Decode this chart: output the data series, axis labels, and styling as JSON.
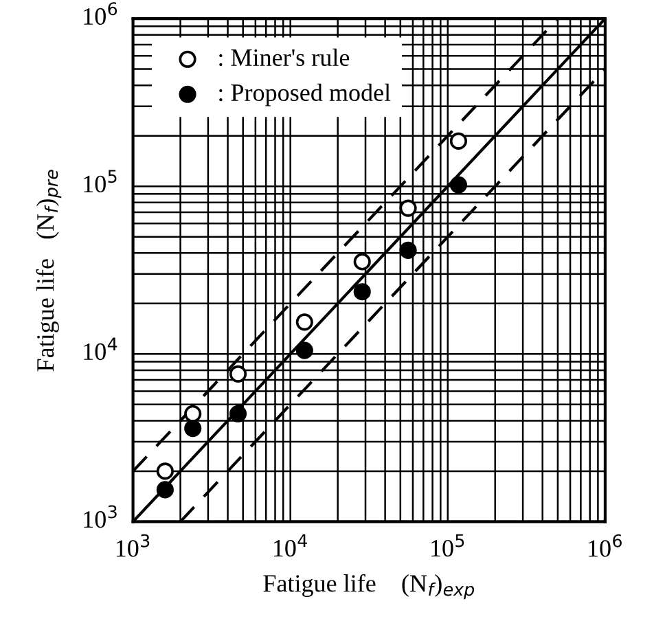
{
  "chart_data": {
    "type": "scatter",
    "xlabel": "Fatigue life    (N$_{f}$)$_{exp}$",
    "ylabel": "Fatigue life   (N$_{f}$)$_{pre}$",
    "log": "xy",
    "xlim": [
      1000,
      1000000
    ],
    "ylim": [
      1000,
      1000000
    ],
    "xticks": [
      {
        "value": 1000,
        "label": "10$^{3}$"
      },
      {
        "value": 10000,
        "label": "10$^{4}$"
      },
      {
        "value": 100000,
        "label": "10$^{5}$"
      },
      {
        "value": 1000000,
        "label": "10$^{6}$"
      }
    ],
    "yticks": [
      {
        "value": 1000,
        "label": "10$^{3}$"
      },
      {
        "value": 10000,
        "label": "10$^{4}$"
      },
      {
        "value": 100000,
        "label": "10$^{5}$"
      },
      {
        "value": 1000000,
        "label": "10$^{6}$"
      }
    ],
    "grid": true,
    "legend": "top left",
    "marker": "circle",
    "series": [
      {
        "name": ": Miner's rule",
        "color": "#ffffff",
        "x": [
          1600,
          2400,
          4650,
          12300,
          28600,
          56000,
          117000
        ],
        "values": [
          2000,
          4400,
          7600,
          15500,
          35500,
          74000,
          186000
        ]
      },
      {
        "name": ": Proposed model",
        "color": "#000000",
        "x": [
          1600,
          2400,
          4650,
          12300,
          28600,
          56000,
          117000
        ],
        "values": [
          1550,
          3600,
          4400,
          10500,
          23500,
          41500,
          102000
        ]
      },
      {
        "type": "line",
        "marker": "none",
        "color": "#000000",
        "line_style": "solid",
        "x": [
          1000,
          1000000
        ],
        "values": [
          1000,
          1000000
        ]
      },
      {
        "type": "line",
        "marker": "none",
        "color": "#000000",
        "line_style": "dashed",
        "x": [
          1000,
          500000
        ],
        "values": [
          2000,
          1000000
        ]
      },
      {
        "type": "line",
        "marker": "none",
        "color": "#000000",
        "line_style": "dashed",
        "x": [
          2000,
          1000000
        ],
        "values": [
          1000,
          500000
        ]
      }
    ]
  }
}
